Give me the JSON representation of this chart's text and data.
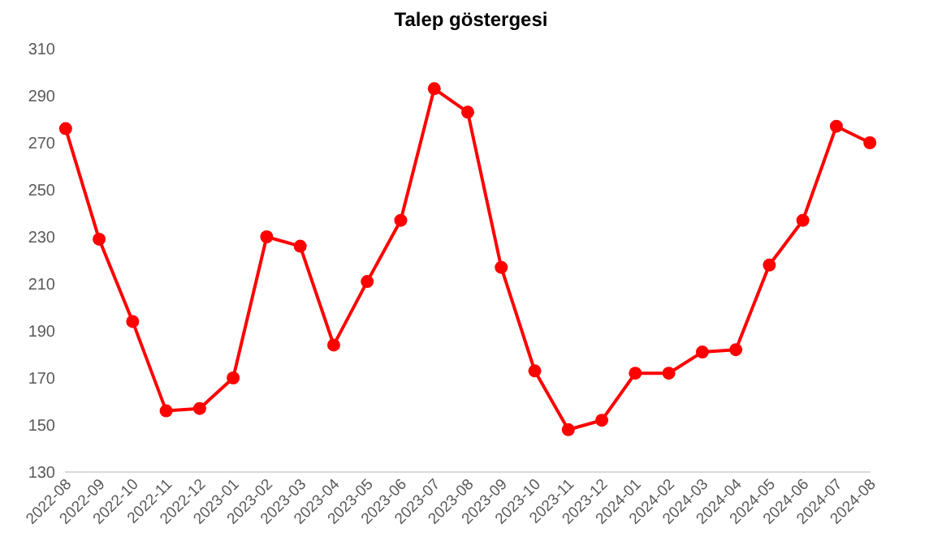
{
  "chart_data": {
    "type": "line",
    "title": "Talep göstergesi",
    "categories": [
      "2022-08",
      "2022-09",
      "2022-10",
      "2022-11",
      "2022-12",
      "2023-01",
      "2023-02",
      "2023-03",
      "2023-04",
      "2023-05",
      "2023-06",
      "2023-07",
      "2023-08",
      "2023-09",
      "2023-10",
      "2023-11",
      "2023-12",
      "2024-01",
      "2024-02",
      "2024-03",
      "2024-04",
      "2024-05",
      "2024-06",
      "2024-07",
      "2024-08"
    ],
    "series": [
      {
        "color": "#ff0000",
        "values": [
          276,
          229,
          194,
          156,
          157,
          170,
          230,
          226,
          184,
          211,
          237,
          293,
          283,
          217,
          173,
          148,
          152,
          172,
          172,
          181,
          182,
          218,
          237,
          277,
          270
        ]
      }
    ],
    "ylim": [
      130,
      310
    ],
    "yticks": [
      130,
      150,
      170,
      190,
      210,
      230,
      250,
      270,
      290,
      310
    ],
    "grid": false,
    "marker": "circle",
    "line_style": "solid"
  }
}
